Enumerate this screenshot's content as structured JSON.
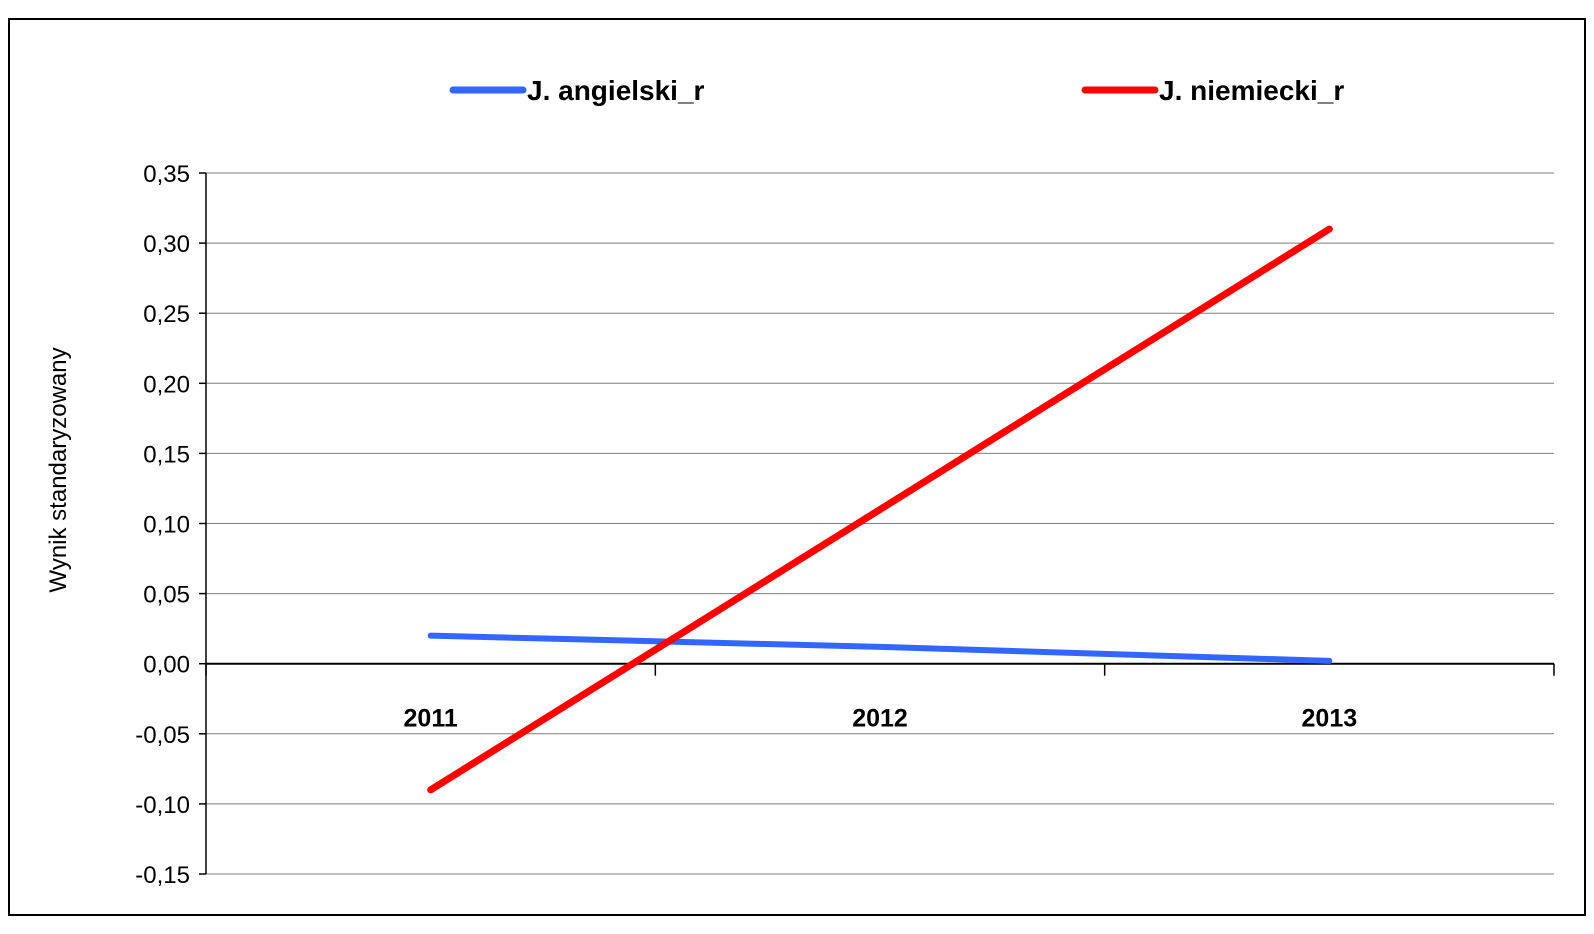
{
  "chart_data": {
    "type": "line",
    "categories": [
      "2011",
      "2012",
      "2013"
    ],
    "series": [
      {
        "name": "J. angielski_r",
        "values": [
          0.02,
          0.012,
          0.002
        ],
        "color": "#3366ff"
      },
      {
        "name": "J. niemiecki_r",
        "values": [
          -0.09,
          0.11,
          0.31
        ],
        "color": "#ff0000"
      }
    ],
    "ylabel": "Wynik standaryzowany",
    "xlabel": "",
    "ylim": [
      -0.15,
      0.35
    ],
    "yticks": [
      "0,35",
      "0,30",
      "0,25",
      "0,20",
      "0,15",
      "0,10",
      "0,05",
      "0,00",
      "-0,05",
      "-0,10",
      "-0,15"
    ],
    "grid": true,
    "legend_position": "top"
  }
}
